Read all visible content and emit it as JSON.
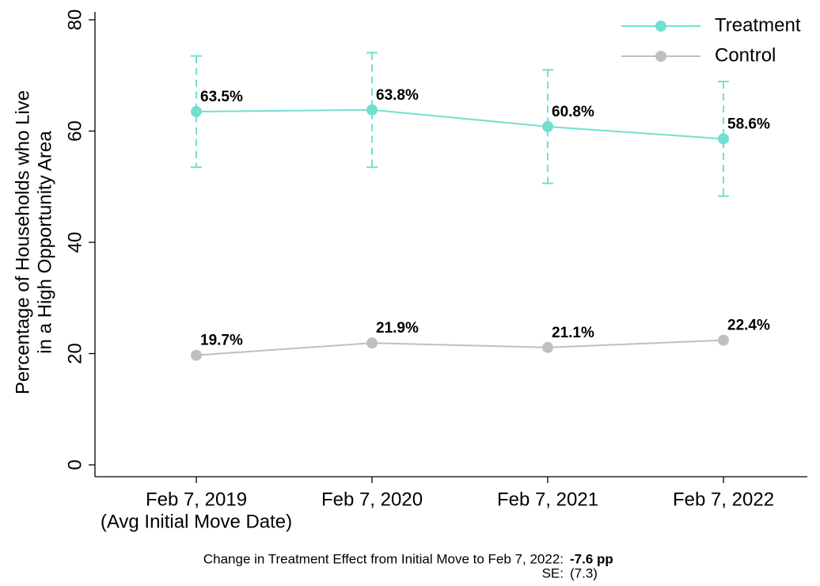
{
  "chart_data": {
    "type": "line",
    "ylabel": [
      "Percentage of Households who Live",
      "in a High Opportunity Area"
    ],
    "categories": [
      "Feb 7, 2019",
      "Feb 7, 2020",
      "Feb 7, 2021",
      "Feb 7, 2022"
    ],
    "category_note": "(Avg Initial Move Date)",
    "series": [
      {
        "name": "Treatment",
        "color": "#72dfd0",
        "values": [
          63.5,
          63.8,
          60.8,
          58.6
        ],
        "errors": [
          10,
          10.3,
          10.2,
          10.3
        ],
        "value_labels": [
          "63.5%",
          "63.8%",
          "60.8%",
          "58.6%"
        ]
      },
      {
        "name": "Control",
        "color": "#c0c0c0",
        "values": [
          19.7,
          21.9,
          21.1,
          22.4
        ],
        "value_labels": [
          "19.7%",
          "21.9%",
          "21.1%",
          "22.4%"
        ]
      }
    ],
    "ylim": [
      0,
      80
    ],
    "yticks": [
      0,
      20,
      40,
      60,
      80
    ],
    "legend": "top-right",
    "notes": [
      [
        "Change in Treatment Effect from Initial Move to Feb 7, 2022:",
        "-7.6 pp"
      ],
      [
        "SE:",
        "(7.3)"
      ]
    ]
  }
}
